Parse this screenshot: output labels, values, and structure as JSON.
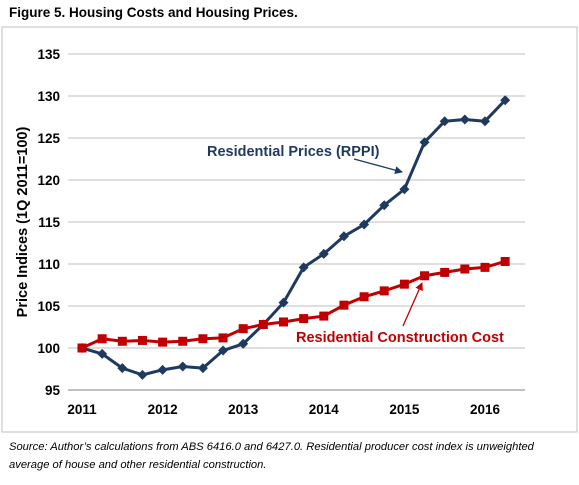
{
  "figure": {
    "title": "Figure 5. Housing Costs and Housing Prices.",
    "source": "Source: Author’s calculations from ABS 6416.0 and 6427.0. Residential producer cost index is unweighted average of house and other residential construction."
  },
  "chart_data": {
    "type": "line",
    "title": "",
    "ylabel": "Price Indices (1Q 2011=100)",
    "xlabel": "",
    "ylim": [
      95,
      135
    ],
    "yticks": [
      "95",
      "100",
      "105",
      "110",
      "115",
      "120",
      "125",
      "130",
      "135"
    ],
    "xticks": [
      "2011",
      "2012",
      "2013",
      "2014",
      "2015",
      "2016"
    ],
    "x_range": [
      2011,
      2016.5
    ],
    "grid": true,
    "series": [
      {
        "name": "Residential Prices (RPPI)",
        "color": "#1f3a5f",
        "marker": "diamond",
        "x": [
          2011.0,
          2011.25,
          2011.5,
          2011.75,
          2012.0,
          2012.25,
          2012.5,
          2012.75,
          2013.0,
          2013.25,
          2013.5,
          2013.75,
          2014.0,
          2014.25,
          2014.5,
          2014.75,
          2015.0,
          2015.25,
          2015.5,
          2015.75,
          2016.0,
          2016.25
        ],
        "values": [
          100.0,
          99.3,
          97.6,
          96.8,
          97.4,
          97.8,
          97.6,
          99.7,
          100.5,
          102.8,
          105.4,
          109.6,
          111.2,
          113.3,
          114.7,
          117.0,
          118.9,
          124.5,
          127.0,
          127.2,
          127.0,
          129.5
        ]
      },
      {
        "name": "Residential Construction Cost",
        "color": "#c00000",
        "marker": "square",
        "x": [
          2011.0,
          2011.25,
          2011.5,
          2011.75,
          2012.0,
          2012.25,
          2012.5,
          2012.75,
          2013.0,
          2013.25,
          2013.5,
          2013.75,
          2014.0,
          2014.25,
          2014.5,
          2014.75,
          2015.0,
          2015.25,
          2015.5,
          2015.75,
          2016.0,
          2016.25
        ],
        "values": [
          100.0,
          101.1,
          100.8,
          100.9,
          100.7,
          100.8,
          101.1,
          101.2,
          102.3,
          102.8,
          103.1,
          103.5,
          103.8,
          105.1,
          106.1,
          106.8,
          107.6,
          108.6,
          109.0,
          109.4,
          109.6,
          110.3
        ]
      }
    ],
    "annotations": [
      {
        "text": "Residential Prices (RPPI)",
        "series": 0,
        "color": "#1f3a5f"
      },
      {
        "text": "Residential Construction Cost",
        "series": 1,
        "color": "#c00000"
      }
    ]
  }
}
